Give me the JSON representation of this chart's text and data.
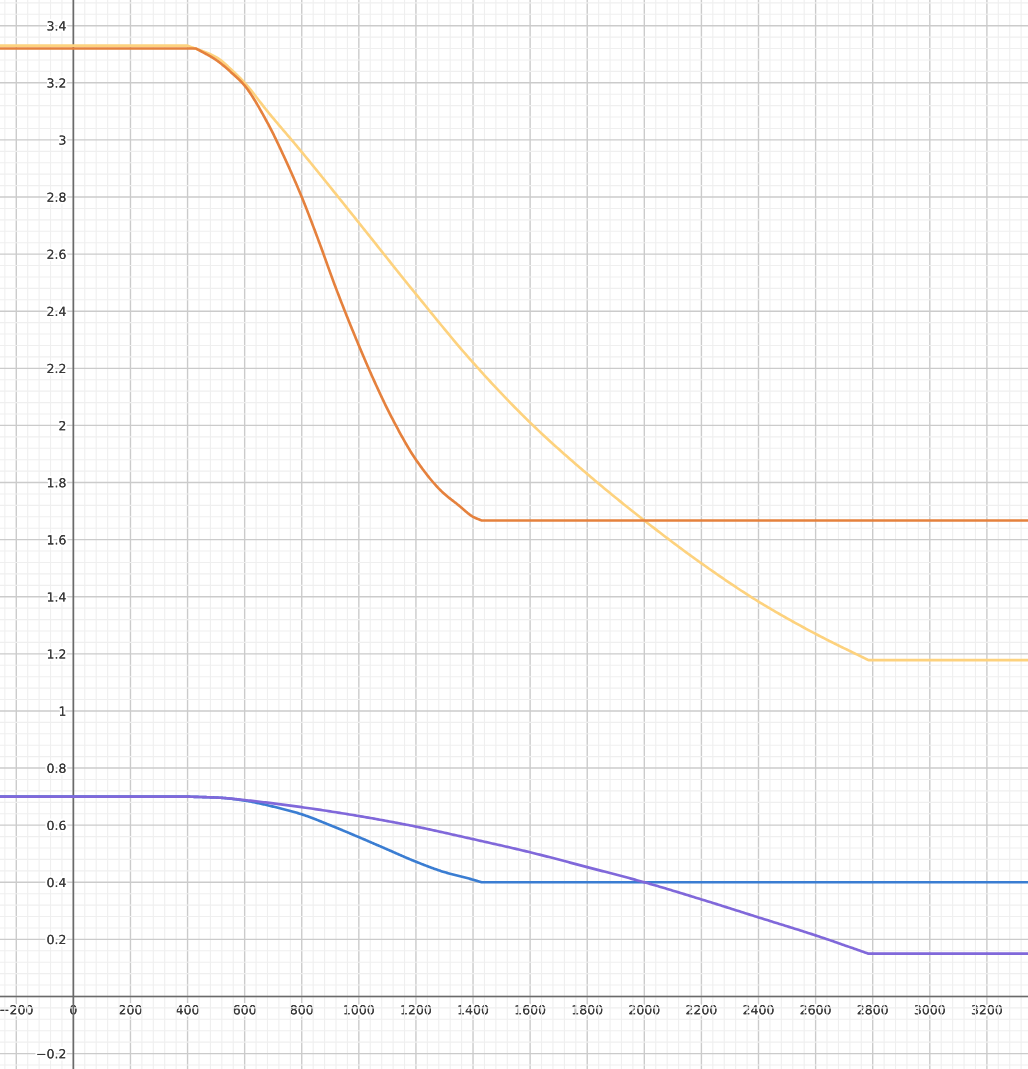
{
  "chart_data": {
    "type": "line",
    "xlim": [
      -257,
      3344
    ],
    "ylim": [
      -0.254,
      3.49
    ],
    "xticks": [
      {
        "value": -200,
        "label": "−200"
      },
      0,
      200,
      400,
      600,
      800,
      1000,
      1200,
      1400,
      1600,
      1800,
      2000,
      2200,
      2400,
      2600,
      2800,
      3000,
      3200
    ],
    "yticks": [
      {
        "value": -0.2,
        "label": "−0.2"
      },
      {
        "value": 0,
        "label": null
      },
      0.2,
      0.4,
      0.6,
      0.8,
      1,
      1.2,
      1.4,
      1.6,
      1.8,
      2,
      2.2,
      2.4,
      2.6,
      2.8,
      3,
      3.2,
      3.4
    ],
    "grid": true,
    "series": [
      {
        "color": "#fdd27e",
        "x": [
          -257,
          400,
          500,
          560,
          600,
          680,
          798,
          1000,
          1200,
          1400,
          1600,
          1800,
          2000,
          2200,
          2400,
          2600,
          2785,
          3344
        ],
        "values": [
          3.33,
          3.33,
          3.29,
          3.24,
          3.2,
          3.1,
          2.96,
          2.71,
          2.46,
          2.22,
          2.01,
          1.83,
          1.667,
          1.517,
          1.383,
          1.27,
          1.178,
          1.178
        ]
      },
      {
        "color": "#e5813d",
        "x": [
          -257,
          430,
          500,
          560,
          600,
          680,
          734,
          800,
          858,
          920,
          1000,
          1061,
          1114,
          1200,
          1289,
          1350,
          1400,
          1430,
          3344
        ],
        "values": [
          3.32,
          3.32,
          3.28,
          3.23,
          3.19,
          3.06,
          2.95,
          2.8,
          2.65,
          2.48,
          2.28,
          2.14,
          2.03,
          1.88,
          1.77,
          1.72,
          1.68,
          1.667,
          1.667
        ]
      },
      {
        "color": "#3a7dd2",
        "x": [
          -257,
          400,
          514,
          600,
          700,
          800,
          904,
          1000,
          1100,
          1200,
          1295,
          1400,
          1430,
          3344
        ],
        "values": [
          0.7,
          0.7,
          0.696,
          0.686,
          0.665,
          0.638,
          0.598,
          0.558,
          0.515,
          0.472,
          0.437,
          0.409,
          0.4,
          0.4
        ]
      },
      {
        "color": "#8068da",
        "x": [
          -257,
          400,
          514,
          600,
          800,
          1000,
          1200,
          1400,
          1600,
          1800,
          2000,
          2200,
          2400,
          2600,
          2785,
          3344
        ],
        "values": [
          0.7,
          0.7,
          0.696,
          0.688,
          0.663,
          0.632,
          0.595,
          0.551,
          0.505,
          0.453,
          0.4,
          0.34,
          0.277,
          0.214,
          0.15,
          0.15
        ]
      }
    ]
  }
}
